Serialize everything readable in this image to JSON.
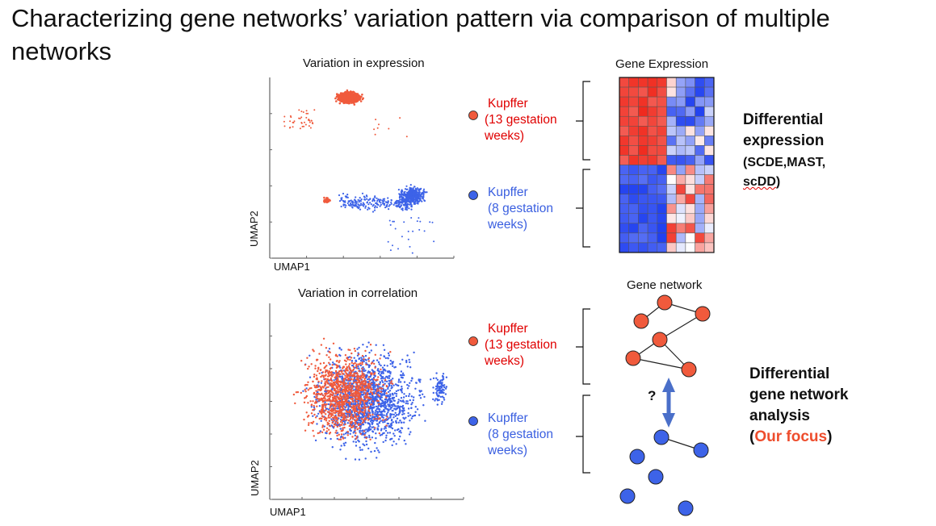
{
  "slide": {
    "title": "Characterizing gene networks’ variation pattern via comparison of multiple networks"
  },
  "top_panel": {
    "plot_title": "Variation in expression",
    "xlabel": "UMAP1",
    "ylabel": "UMAP2",
    "heatmap_title": "Gene Expression",
    "method": {
      "line1": "Differential",
      "line2": "expression",
      "line3": "(SCDE,MAST,",
      "line4_underlined": "scDD",
      "line4_close": ")"
    }
  },
  "bottom_panel": {
    "plot_title": "Variation in correlation",
    "xlabel": "UMAP1",
    "ylabel": "UMAP2",
    "network_title": "Gene network",
    "question_mark": "?",
    "method": {
      "line1": "Differential",
      "line2": "gene network",
      "line3": "analysis",
      "line4_open": "(",
      "line4_focus": "Our focus",
      "line4_close": ")"
    }
  },
  "groups": {
    "kupffer_13": {
      "line1": "Kupffer",
      "line2": "(13 gestation",
      "line3": "weeks)",
      "color": "#f05a3c"
    },
    "kupffer_8": {
      "line1": "Kupffer",
      "line2": "(8 gestation",
      "line3": "weeks)",
      "color": "#3d63e8"
    }
  },
  "colors": {
    "heat_red": "#f02a1e",
    "heat_blue": "#1f3ff0",
    "arrow": "#4a6fc9"
  }
}
